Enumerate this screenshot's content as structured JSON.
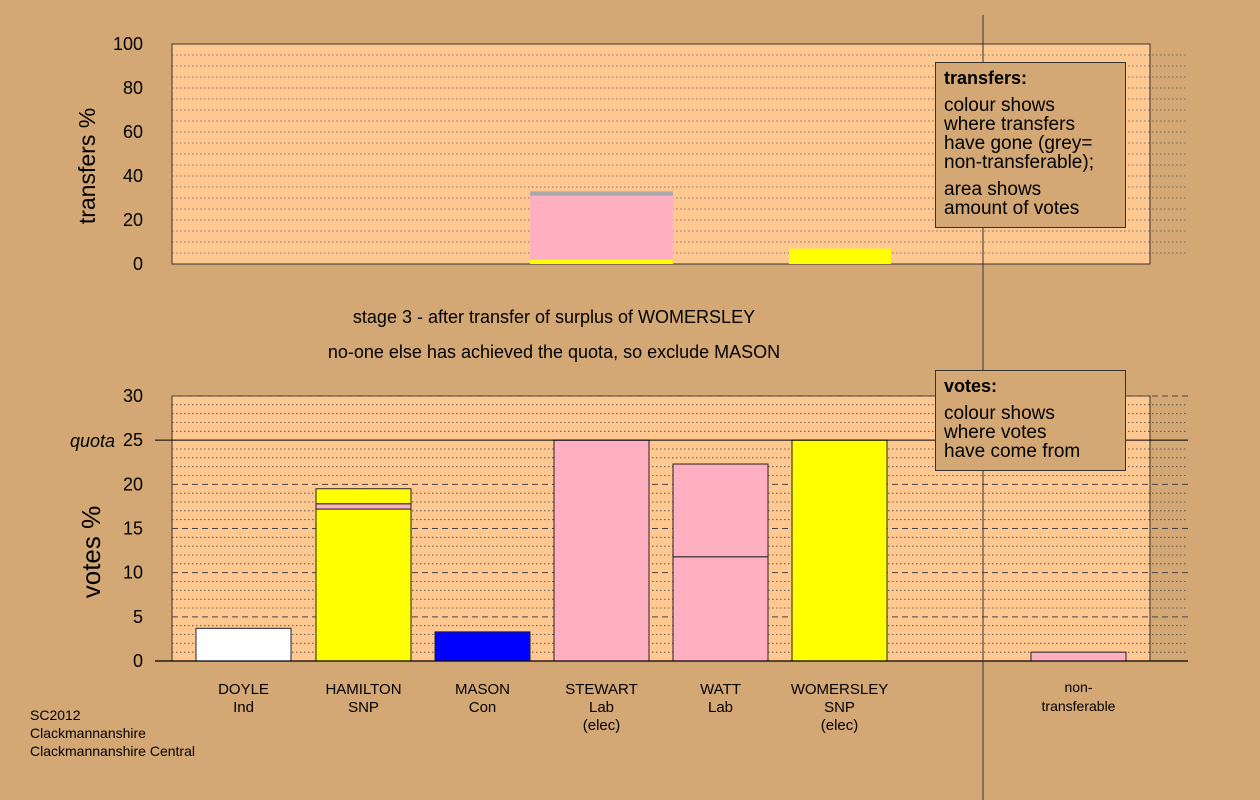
{
  "chart_data": [
    {
      "type": "bar",
      "stacked": true,
      "ylabel": "transfers %",
      "ylim": [
        0,
        100
      ],
      "yticks": [
        0,
        20,
        40,
        60,
        80,
        100
      ],
      "bars": [
        {
          "position": "STEWART",
          "segments": [
            {
              "value": 2,
              "color": "#ffff00"
            },
            {
              "value": 29,
              "color": "#ffb0c0"
            },
            {
              "value": 2,
              "color": "#aaaaaa"
            }
          ]
        },
        {
          "position": "WATT",
          "segments": [
            {
              "value": 7,
              "color": "#ffff00"
            }
          ]
        }
      ]
    },
    {
      "type": "bar",
      "stacked": true,
      "ylabel": "votes %",
      "ylim": [
        0,
        30
      ],
      "yticks": [
        0,
        5,
        10,
        15,
        20,
        25,
        30
      ],
      "quota": 25,
      "quota_label": "quota",
      "categories": [
        {
          "name": "DOYLE",
          "party": "Ind",
          "note": ""
        },
        {
          "name": "HAMILTON",
          "party": "SNP",
          "note": ""
        },
        {
          "name": "MASON",
          "party": "Con",
          "note": ""
        },
        {
          "name": "STEWART",
          "party": "Lab",
          "note": "(elec)"
        },
        {
          "name": "WATT",
          "party": "Lab",
          "note": ""
        },
        {
          "name": "WOMERSLEY",
          "party": "SNP",
          "note": "(elec)"
        }
      ],
      "bars": [
        {
          "candidate": "DOYLE",
          "segments": [
            {
              "value": 3.7,
              "color": "#ffffff"
            }
          ]
        },
        {
          "candidate": "HAMILTON",
          "segments": [
            {
              "value": 17.2,
              "color": "#ffff00"
            },
            {
              "value": 0.6,
              "color": "#ffb0c0"
            },
            {
              "value": 1.7,
              "color": "#ffff00"
            }
          ]
        },
        {
          "candidate": "MASON",
          "segments": [
            {
              "value": 3.3,
              "color": "#0000ff"
            }
          ]
        },
        {
          "candidate": "STEWART",
          "segments": [
            {
              "value": 25,
              "color": "#ffb0c0"
            }
          ]
        },
        {
          "candidate": "WATT",
          "segments": [
            {
              "value": 11.8,
              "color": "#ffb0c0"
            },
            {
              "value": 10.5,
              "color": "#ffb0c0"
            }
          ]
        },
        {
          "candidate": "WOMERSLEY",
          "segments": [
            {
              "value": 25,
              "color": "#ffff00"
            }
          ]
        }
      ],
      "non_transferable": {
        "label_line1": "non-",
        "label_line2": "transferable",
        "segments": [
          {
            "value": 1.0,
            "color": "#ffb0c0"
          }
        ]
      }
    }
  ],
  "stage_text": {
    "line1": "stage 3 - after transfer of surplus of WOMERSLEY",
    "line2": "no-one else has achieved the quota, so exclude MASON"
  },
  "transfers_box": {
    "title": "transfers:",
    "para1": [
      "colour shows",
      "where transfers",
      "have gone (grey=",
      "non-transferable);"
    ],
    "para2": [
      "area shows",
      "amount of votes"
    ]
  },
  "votes_box": {
    "title": "votes:",
    "para1": [
      "colour shows",
      "where votes",
      "have come from"
    ]
  },
  "footer": {
    "line1": "SC2012",
    "line2": "Clackmannanshire",
    "line3": "Clackmannanshire Central"
  }
}
